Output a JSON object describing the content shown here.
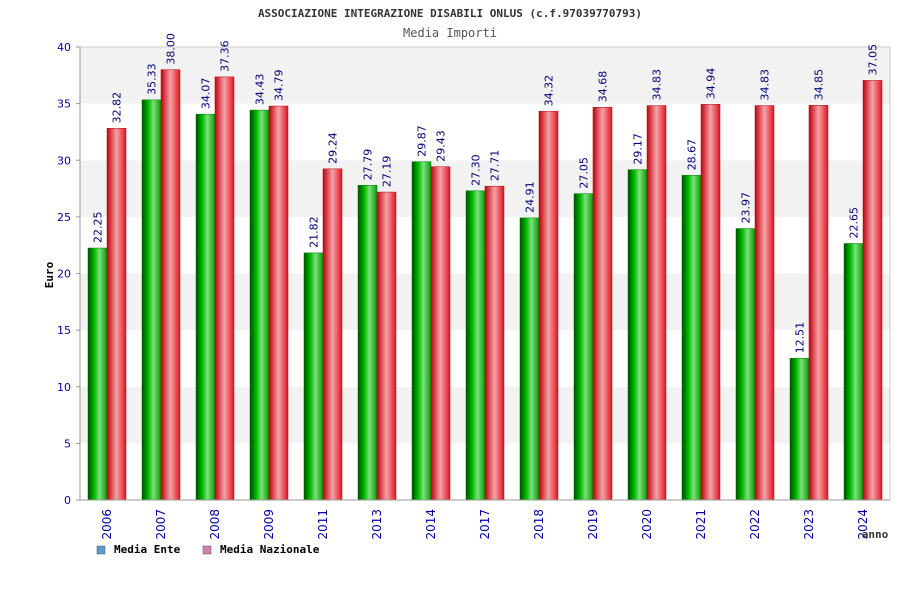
{
  "chart_data": {
    "type": "bar",
    "title": "ASSOCIAZIONE INTEGRAZIONE DISABILI ONLUS (c.f.97039770793)",
    "subtitle": "Media Importi",
    "xlabel": "anno",
    "ylabel": "Euro",
    "ylim": [
      0,
      40
    ],
    "yticks": [
      0,
      5,
      10,
      15,
      20,
      25,
      30,
      35,
      40
    ],
    "ytick_labels": [
      "0",
      "5",
      "10",
      "15",
      "20",
      "25",
      "30",
      "35",
      "40"
    ],
    "grid": "horizontal bands",
    "legend_position": "bottom-left",
    "categories": [
      "2006",
      "2007",
      "2008",
      "2009",
      "2011",
      "2013",
      "2014",
      "2017",
      "2018",
      "2019",
      "2020",
      "2021",
      "2022",
      "2023",
      "2024"
    ],
    "series": [
      {
        "name": "Media Ente",
        "color": "#00aa00",
        "legend_color": "#5b9bd5",
        "values": [
          22.25,
          35.33,
          34.07,
          34.43,
          21.82,
          27.79,
          29.87,
          27.3,
          24.91,
          27.05,
          29.17,
          28.67,
          23.97,
          12.51,
          22.65
        ],
        "labels": [
          "22.25",
          "35.33",
          "34.07",
          "34.43",
          "21.82",
          "27.79",
          "29.87",
          "27.30",
          "24.91",
          "27.05",
          "29.17",
          "28.67",
          "23.97",
          "12.51",
          "22.65"
        ]
      },
      {
        "name": "Media Nazionale",
        "color": "#e0141e",
        "legend_color": "#d77fb0",
        "values": [
          32.82,
          38.0,
          37.36,
          34.79,
          29.24,
          27.19,
          29.43,
          27.71,
          34.32,
          34.68,
          34.83,
          34.94,
          34.83,
          34.85,
          37.05
        ],
        "labels": [
          "32.82",
          "38.00",
          "37.36",
          "34.79",
          "29.24",
          "27.19",
          "29.43",
          "27.71",
          "34.32",
          "34.68",
          "34.83",
          "34.94",
          "34.83",
          "34.85",
          "37.05"
        ]
      }
    ]
  }
}
